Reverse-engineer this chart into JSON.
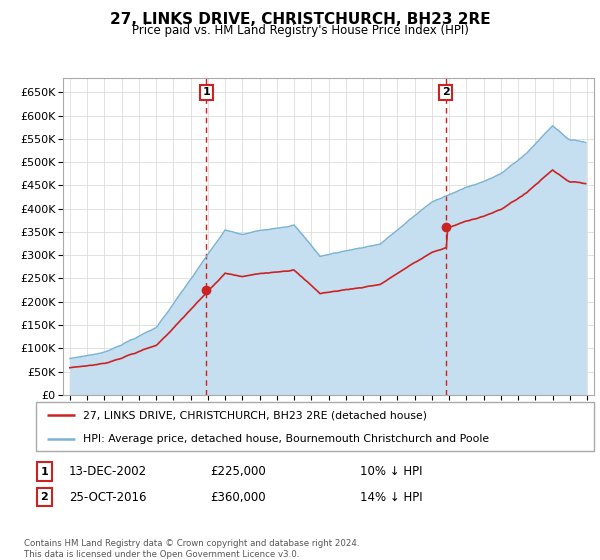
{
  "title": "27, LINKS DRIVE, CHRISTCHURCH, BH23 2RE",
  "subtitle": "Price paid vs. HM Land Registry's House Price Index (HPI)",
  "legend_line1": "27, LINKS DRIVE, CHRISTCHURCH, BH23 2RE (detached house)",
  "legend_line2": "HPI: Average price, detached house, Bournemouth Christchurch and Poole",
  "sale1_date": "13-DEC-2002",
  "sale1_price": "£225,000",
  "sale1_hpi": "10% ↓ HPI",
  "sale1_year": 2002.92,
  "sale1_value": 225000,
  "sale2_date": "25-OCT-2016",
  "sale2_price": "£360,000",
  "sale2_hpi": "14% ↓ HPI",
  "sale2_year": 2016.79,
  "sale2_value": 360000,
  "footer": "Contains HM Land Registry data © Crown copyright and database right 2024.\nThis data is licensed under the Open Government Licence v3.0.",
  "hpi_color": "#7ab3d4",
  "hpi_fill_color": "#c5dff0",
  "sale_color": "#cc2222",
  "vline_color": "#cc2222",
  "grid_color": "#dddddd",
  "yticks": [
    0,
    50000,
    100000,
    150000,
    200000,
    250000,
    300000,
    350000,
    400000,
    450000,
    500000,
    550000,
    600000,
    650000
  ],
  "ylim_max": 680000
}
